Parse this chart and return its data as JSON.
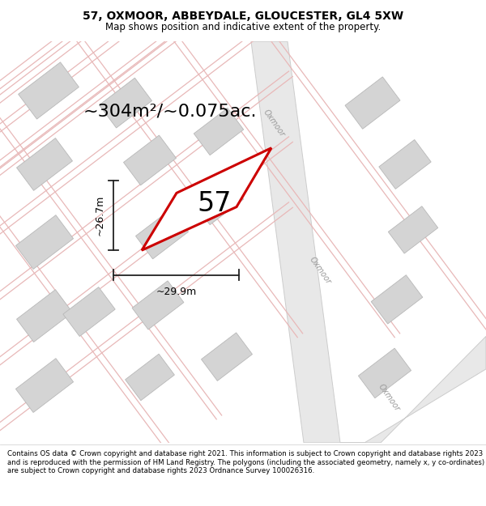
{
  "title": "57, OXMOOR, ABBEYDALE, GLOUCESTER, GL4 5XW",
  "subtitle": "Map shows position and indicative extent of the property.",
  "footer": "Contains OS data © Crown copyright and database right 2021. This information is subject to Crown copyright and database rights 2023 and is reproduced with the permission of HM Land Registry. The polygons (including the associated geometry, namely x, y co-ordinates) are subject to Crown copyright and database rights 2023 Ordnance Survey 100026316.",
  "area_label": "~304m²/~0.075ac.",
  "number_label": "57",
  "width_label": "~29.9m",
  "height_label": "~26.7m",
  "map_bg": "#f0f0f0",
  "road_fill": "#e8e8e8",
  "road_edge": "#cccccc",
  "street_color": "#e8b8b8",
  "building_color": "#d4d4d4",
  "building_edge": "#b8b8b8",
  "road_label_color": "#999999",
  "plot_edge_color": "#cc0000",
  "dim_line_color": "#222222",
  "title_fontsize": 10,
  "subtitle_fontsize": 8.5,
  "footer_fontsize": 6.2,
  "area_fontsize": 16,
  "number_fontsize": 24,
  "dim_fontsize": 9,
  "oxmoor_label_fontsize": 7
}
